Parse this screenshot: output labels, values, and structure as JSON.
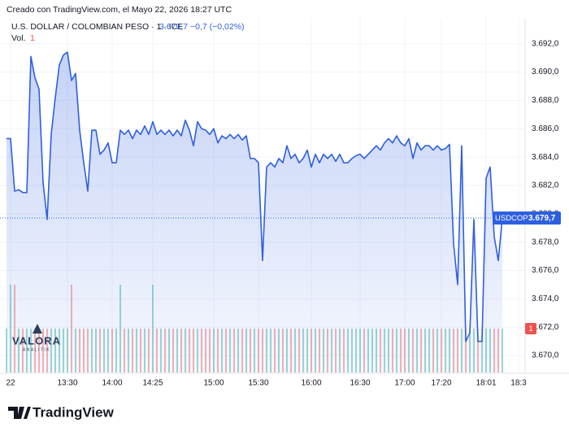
{
  "header": "Creado con TradingView.com, el Mayo 22, 2026 18:27 UTC",
  "watermark": [
    "VALORA",
    "ANALITIK"
  ],
  "footer": "TradingView",
  "chart_data": {
    "type": "line",
    "legend": "U.S. DOLLAR / COLOMBIAN PESO · 1 · ICE",
    "last_label": "3.679,7",
    "change": "−0,7 (−0,02%)",
    "symbol": "USDCOP",
    "volume_label": "Vol.",
    "color": "#2e5fe0",
    "area": true,
    "up_color": "#26a69a",
    "down_color": "#ef5350",
    "grid": true,
    "ylim": [
      3668.8,
      3692.5
    ],
    "yticks": [
      {
        "value": 3670,
        "label": "3.670,0"
      },
      {
        "value": 3672,
        "label": "3.672,0"
      },
      {
        "value": 3674,
        "label": "3.674,0"
      },
      {
        "value": 3676,
        "label": "3.676,0"
      },
      {
        "value": 3678,
        "label": "3.678,0"
      },
      {
        "value": 3680,
        "label": "3.680,0"
      },
      {
        "value": 3682,
        "label": "3.682,0"
      },
      {
        "value": 3684,
        "label": "3.684,0"
      },
      {
        "value": 3686,
        "label": "3.686,0"
      },
      {
        "value": 3688,
        "label": "3.688,0"
      },
      {
        "value": 3690,
        "label": "3.690,0"
      },
      {
        "value": 3692,
        "label": "3.692,0"
      }
    ],
    "categories": [
      null,
      "22",
      null,
      null,
      null,
      null,
      null,
      null,
      null,
      null,
      null,
      null,
      null,
      null,
      null,
      "13:30",
      null,
      null,
      null,
      null,
      null,
      null,
      null,
      null,
      null,
      null,
      "14:00",
      null,
      null,
      null,
      null,
      null,
      null,
      null,
      null,
      null,
      "14:25",
      null,
      null,
      null,
      null,
      null,
      null,
      null,
      null,
      null,
      null,
      null,
      null,
      null,
      null,
      "15:00",
      null,
      null,
      null,
      null,
      null,
      null,
      null,
      null,
      null,
      null,
      "15:30",
      null,
      null,
      null,
      null,
      null,
      null,
      null,
      null,
      null,
      null,
      null,
      null,
      "16:00",
      null,
      null,
      null,
      null,
      null,
      null,
      null,
      null,
      null,
      null,
      null,
      "16:30",
      null,
      null,
      null,
      null,
      null,
      null,
      null,
      null,
      null,
      null,
      "17:00",
      null,
      null,
      null,
      null,
      null,
      null,
      null,
      null,
      "17:20",
      null,
      null,
      null,
      null,
      null,
      null,
      null,
      null,
      null,
      null,
      "18:01",
      null,
      null,
      null,
      null,
      null,
      null,
      null,
      "18:3",
      null
    ],
    "values": [
      3685.3,
      3685.3,
      3681.6,
      3681.7,
      3681.5,
      3681.5,
      3691.1,
      3689.6,
      3688.8,
      3682.2,
      3679.6,
      3685.6,
      3688.2,
      3690.5,
      3691.2,
      3691.4,
      3689.4,
      3689.9,
      3685.9,
      3683.6,
      3681.6,
      3685.9,
      3685.9,
      3684.2,
      3684.5,
      3685.0,
      3683.6,
      3683.6,
      3685.9,
      3685.6,
      3685.9,
      3685.3,
      3685.9,
      3685.6,
      3686.2,
      3685.6,
      3686.5,
      3685.6,
      3685.9,
      3685.6,
      3685.9,
      3685.5,
      3685.9,
      3685.5,
      3686.6,
      3685.9,
      3684.8,
      3686.5,
      3686.0,
      3685.9,
      3685.6,
      3686.0,
      3685.0,
      3685.5,
      3685.3,
      3685.6,
      3685.3,
      3685.6,
      3685.2,
      3685.5,
      3683.9,
      3683.9,
      3683.6,
      3676.7,
      3683.3,
      3683.6,
      3683.3,
      3683.9,
      3683.6,
      3684.8,
      3683.9,
      3684.2,
      3683.6,
      3683.9,
      3684.5,
      3683.3,
      3684.2,
      3683.6,
      3684.2,
      3683.9,
      3684.2,
      3683.7,
      3684.2,
      3683.6,
      3683.6,
      3683.9,
      3684.1,
      3684.2,
      3683.9,
      3684.2,
      3684.5,
      3684.8,
      3684.5,
      3685.0,
      3685.3,
      3685.0,
      3685.5,
      3685.0,
      3684.8,
      3685.3,
      3683.9,
      3685.0,
      3684.5,
      3684.8,
      3684.8,
      3684.5,
      3684.8,
      3684.5,
      3684.6,
      3684.9,
      3677.9,
      3675.0,
      3684.8,
      3671.0,
      3671.6,
      3679.6,
      3671.0,
      3671.0,
      3682.5,
      3683.3,
      3678.4,
      3676.7,
      3679.7,
      null,
      null,
      null,
      null,
      null
    ],
    "volume": [
      1,
      2,
      2,
      1,
      1,
      1,
      1,
      1,
      1,
      1,
      1,
      1,
      1,
      1,
      1,
      1,
      2,
      1,
      1,
      1,
      1,
      1,
      1,
      1,
      1,
      1,
      1,
      1,
      2,
      1,
      1,
      1,
      1,
      1,
      1,
      1,
      2,
      1,
      1,
      1,
      1,
      1,
      1,
      1,
      1,
      1,
      1,
      1,
      1,
      1,
      1,
      1,
      1,
      1,
      1,
      1,
      1,
      1,
      1,
      1,
      1,
      1,
      1,
      1,
      1,
      1,
      1,
      1,
      1,
      1,
      1,
      1,
      1,
      1,
      1,
      1,
      1,
      1,
      1,
      1,
      1,
      1,
      1,
      1,
      1,
      1,
      1,
      1,
      1,
      1,
      1,
      1,
      1,
      1,
      1,
      1,
      1,
      1,
      1,
      1,
      1,
      1,
      1,
      1,
      1,
      1,
      1,
      1,
      1,
      1,
      1,
      1,
      1,
      1,
      1,
      1,
      1,
      1,
      1,
      1,
      1,
      1,
      1,
      null,
      null,
      null,
      null,
      null
    ]
  }
}
